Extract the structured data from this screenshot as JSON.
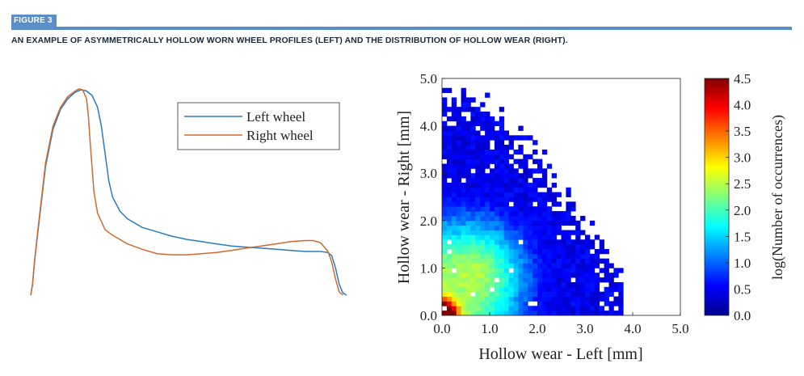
{
  "figure": {
    "label": "FIGURE 3",
    "caption": "AN EXAMPLE OF ASYMMETRICALLY HOLLOW WORN WHEEL PROFILES (LEFT) AND THE DISTRIBUTION OF HOLLOW WEAR (RIGHT)."
  },
  "colors": {
    "accent": "#5b8ec7",
    "left_wheel": "#2a7bbf",
    "right_wheel": "#d0692e"
  },
  "chart_data": [
    {
      "type": "line",
      "legend": [
        "Left wheel",
        "Right wheel"
      ],
      "legend_placement": "top-right",
      "axes_visible": false,
      "series": [
        {
          "name": "Left wheel",
          "x": [
            0,
            0.5,
            1,
            2,
            4,
            6,
            8,
            10,
            12,
            13.5,
            15,
            16.5,
            18,
            19,
            20,
            21,
            22,
            24,
            26,
            28,
            30,
            34,
            38,
            42,
            46,
            50,
            54,
            58,
            62,
            66,
            70,
            74,
            78,
            80,
            81,
            82,
            83,
            84,
            85
          ],
          "y": [
            0,
            10,
            30,
            60,
            118,
            152,
            170,
            180,
            186,
            188,
            187,
            183,
            172,
            155,
            130,
            105,
            90,
            77,
            70,
            66,
            62,
            58,
            54,
            51,
            49,
            47,
            45,
            44,
            43,
            42,
            41,
            40,
            40,
            39,
            36,
            25,
            10,
            2,
            0
          ]
        },
        {
          "name": "Right wheel",
          "x": [
            0,
            0.5,
            1,
            2,
            4,
            6,
            8,
            10,
            12,
            13,
            14,
            15,
            15.5,
            16,
            17,
            18,
            20,
            22,
            24,
            26,
            30,
            34,
            38,
            42,
            46,
            50,
            54,
            58,
            62,
            66,
            70,
            74,
            76,
            78,
            80,
            81,
            82,
            83,
            84
          ],
          "y": [
            0,
            10,
            30,
            62,
            121,
            155,
            172,
            182,
            187,
            189,
            188,
            180,
            165,
            140,
            95,
            75,
            60,
            55,
            51,
            47,
            42,
            38,
            37,
            37,
            38,
            39,
            41,
            43,
            45,
            47,
            49,
            50,
            50,
            48,
            40,
            30,
            15,
            3,
            0
          ]
        }
      ]
    },
    {
      "type": "heatmap",
      "xlabel": "Hollow wear - Left [mm]",
      "ylabel": "Hollow wear - Right [mm]",
      "xlim": [
        0,
        5
      ],
      "ylim": [
        0,
        5
      ],
      "xticks": [
        "0.0",
        "1.0",
        "2.0",
        "3.0",
        "4.0",
        "5.0"
      ],
      "yticks": [
        "0.0",
        "1.0",
        "2.0",
        "3.0",
        "4.0",
        "5.0"
      ],
      "bin_size": 0.1,
      "colorbar": {
        "label": "log(Number of occurrences)",
        "range": [
          0,
          4.5
        ],
        "ticks": [
          "0.0",
          "0.5",
          "1.0",
          "1.5",
          "2.0",
          "2.5",
          "3.0",
          "3.5",
          "4.0",
          "4.5"
        ],
        "colormap": "jet"
      },
      "density": {
        "peak": [
          0.05,
          0.05
        ],
        "peak_value": 4.5,
        "core": [
          0.6,
          0.8
        ],
        "core_value": 2.5,
        "upper_envelope": [
          [
            0.0,
            4.6
          ],
          [
            0.5,
            4.6
          ],
          [
            1.0,
            4.3
          ],
          [
            1.5,
            3.8
          ],
          [
            2.0,
            3.3
          ],
          [
            2.5,
            2.5
          ],
          [
            3.0,
            1.8
          ],
          [
            3.5,
            1.0
          ],
          [
            3.8,
            0.5
          ]
        ],
        "floor_value": 0.3
      }
    }
  ]
}
